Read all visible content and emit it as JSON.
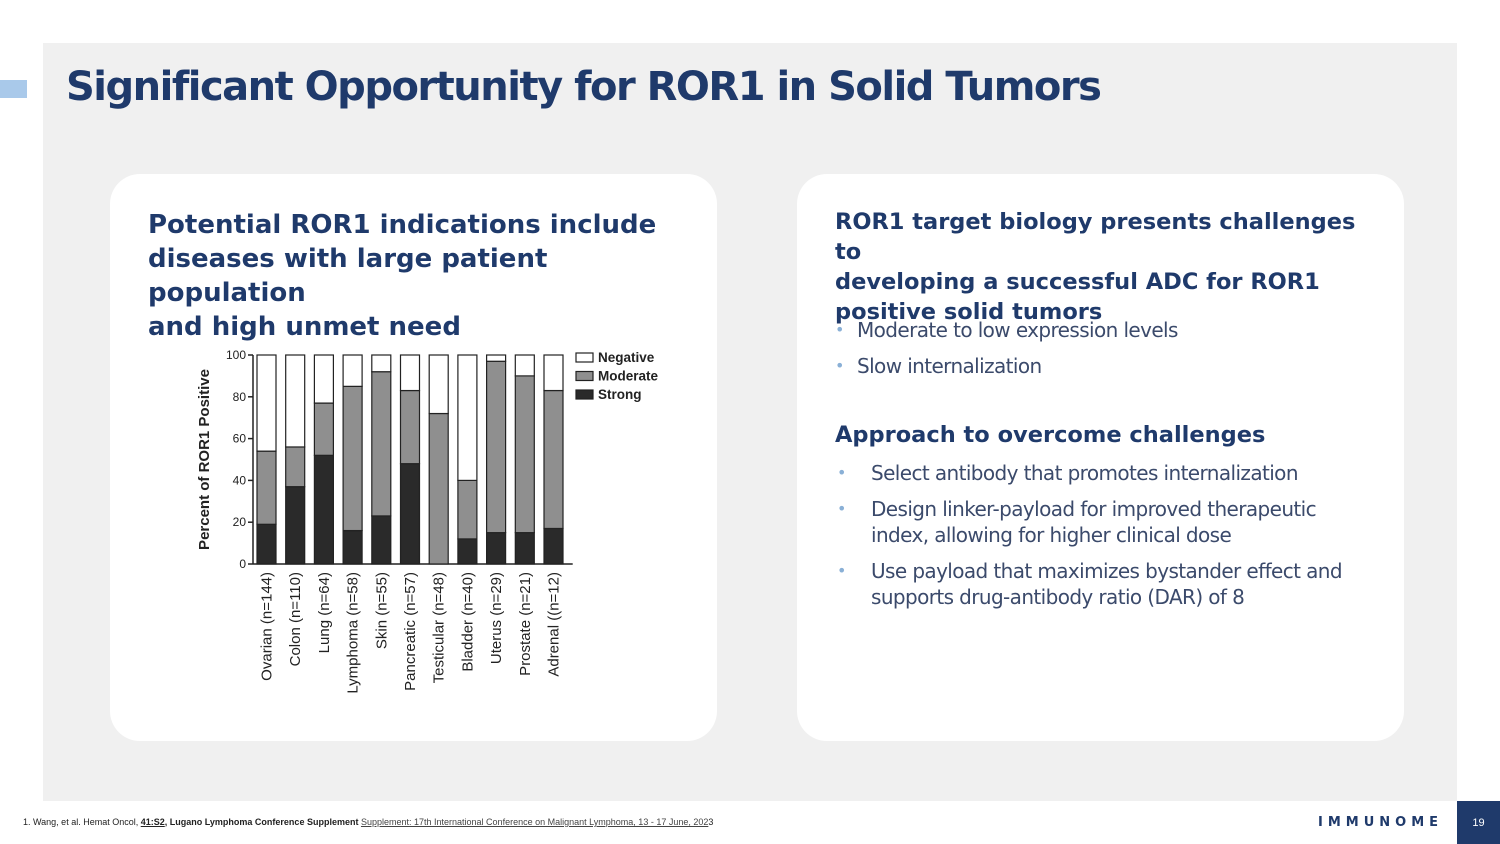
{
  "slide": {
    "title": "Significant Opportunity for ROR1 in Solid Tumors",
    "page_number": "19",
    "logo_text": "IMMUNOME",
    "colors": {
      "primary": "#1f3a6b",
      "background": "#f0f0f0",
      "accent": "#a9c9ea",
      "bullet": "#8ab0d6"
    }
  },
  "left_card": {
    "heading": "Potential ROR1 indications include\ndiseases with large patient population\nand high unmet need"
  },
  "right_card": {
    "heading": "ROR1 target biology presents challenges to\ndeveloping a successful ADC for ROR1\npositive solid tumors",
    "challenges": [
      "Moderate to low expression levels",
      "Slow internalization"
    ],
    "approach_heading": "Approach to overcome challenges",
    "approaches": [
      "Select antibody that promotes internalization",
      "Design linker-payload for improved therapeutic index, allowing for higher clinical dose",
      "Use payload that maximizes bystander effect and supports drug-antibody ratio (DAR) of 8"
    ],
    "bullet_glyph": "•"
  },
  "footnote": {
    "prefix": "1. Wang, et al. Hemat Oncol, ",
    "volume": "41:S2",
    "sep": ", ",
    "conference": "Lugano Lymphoma Conference Supplement",
    "supplement": "Supplement: 17th International Conference on Malignant Lymphoma, 13 - 17 June, 202",
    "suffix": "3"
  },
  "chart_data": {
    "type": "bar",
    "stacked": true,
    "ylabel": "Percent of ROR1 Positive",
    "ylim": [
      0,
      100
    ],
    "yticks": [
      "0",
      "20",
      "40",
      "60",
      "80",
      "100"
    ],
    "categories": [
      "Ovarian (n=144)",
      "Colon (n=110)",
      "Lung (n=64)",
      "Lymphoma (n=58)",
      "Skin (n=55)",
      "Pancreatic (n=57)",
      "Testicular (n=48)",
      "Bladder (n=40)",
      "Uterus (n=29)",
      "Prostate (n=21)",
      "Adrenal ((n=12)"
    ],
    "series": [
      {
        "name": "Strong",
        "color": "#2a2a2a",
        "values": [
          19,
          37,
          52,
          16,
          23,
          48,
          0,
          12,
          15,
          15,
          17
        ]
      },
      {
        "name": "Moderate",
        "color": "#8f8f8f",
        "values": [
          35,
          19,
          25,
          69,
          69,
          35,
          72,
          28,
          82,
          75,
          66
        ]
      },
      {
        "name": "Negative",
        "color": "#ffffff",
        "values": [
          46,
          44,
          23,
          15,
          8,
          17,
          28,
          60,
          3,
          10,
          17
        ]
      }
    ],
    "legend_order": [
      "Negative",
      "Moderate",
      "Strong"
    ],
    "legend_position": "top-right",
    "grid": false
  }
}
